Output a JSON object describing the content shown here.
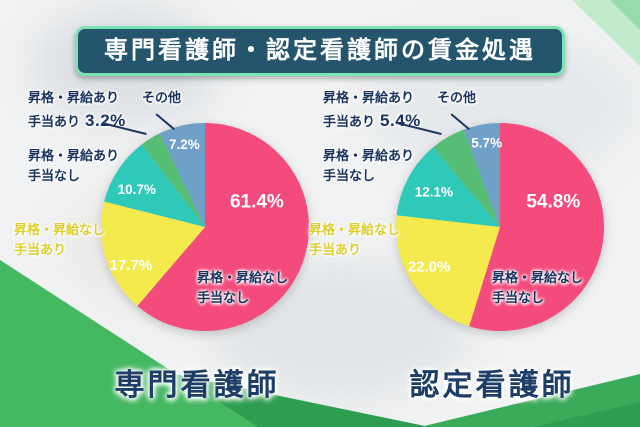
{
  "title": "専門看護師・認定看護師の賃金処遇",
  "colors": {
    "navy": "#1a3560",
    "pink": "#f24b7c",
    "yellow": "#f4e94d",
    "yellow_text": "#ddce2e",
    "teal": "#2fc9b9",
    "green": "#58bd74",
    "steel": "#6fa0c8",
    "banner_bg": "#24556c",
    "banner_border": "#7be3b4",
    "bg_green_bright": "#45b862",
    "bg_green_dark": "#2f9e50",
    "bg_green_right": "#3aab59",
    "bg_mint_light": "#c2ebcb",
    "bg_mint_deep": "#99dcab"
  },
  "chart_data": [
    {
      "type": "pie",
      "title": "専門看護師",
      "labels": [
        "昇格・昇給なし 手当なし",
        "昇格・昇給なし 手当あり",
        "昇格・昇給あり 手当なし",
        "昇格・昇給あり 手当あり",
        "その他"
      ],
      "values": [
        61.4,
        17.7,
        10.7,
        3.2,
        7.2
      ],
      "pct_labels": [
        "61.4%",
        "17.7%",
        "10.7%",
        "3.2%",
        "7.2%"
      ],
      "color_keys": [
        "pink",
        "yellow",
        "teal",
        "green",
        "steel"
      ],
      "start_angle_deg": 0,
      "direction": "clockwise",
      "pct_inside": [
        true,
        true,
        true,
        false,
        true
      ],
      "legend_position": "around"
    },
    {
      "type": "pie",
      "title": "認定看護師",
      "labels": [
        "昇格・昇給なし 手当なし",
        "昇格・昇給なし 手当あり",
        "昇格・昇給あり 手当なし",
        "昇格・昇給あり 手当あり",
        "その他"
      ],
      "values": [
        54.8,
        22.0,
        12.1,
        5.4,
        5.7
      ],
      "pct_labels": [
        "54.8%",
        "22.0%",
        "12.1%",
        "5.4%",
        "5.7%"
      ],
      "color_keys": [
        "pink",
        "yellow",
        "teal",
        "green",
        "steel"
      ],
      "start_angle_deg": 0,
      "direction": "clockwise",
      "pct_inside": [
        true,
        true,
        true,
        false,
        true
      ],
      "legend_position": "around"
    }
  ],
  "annotations": [
    {
      "promo_allowance": {
        "line1": "昇格・昇給あり",
        "line2": "手当あり",
        "pct": "3.2%"
      },
      "other_label": "その他",
      "promo_no_allowance": {
        "line1": "昇格・昇給あり",
        "line2": "手当なし"
      },
      "no_promo_allowance": {
        "line1": "昇格・昇給なし",
        "line2": "手当あり"
      },
      "no_promo_no_allowance": {
        "line1": "昇格・昇給なし",
        "line2": "手当なし"
      }
    },
    {
      "promo_allowance": {
        "line1": "昇格・昇給あり",
        "line2": "手当あり",
        "pct": "5.4%"
      },
      "other_label": "その他",
      "promo_no_allowance": {
        "line1": "昇格・昇給あり",
        "line2": "手当なし"
      },
      "no_promo_allowance": {
        "line1": "昇格・昇給なし",
        "line2": "手当あり"
      },
      "no_promo_no_allowance": {
        "line1": "昇格・昇給なし",
        "line2": "手当なし"
      }
    }
  ]
}
